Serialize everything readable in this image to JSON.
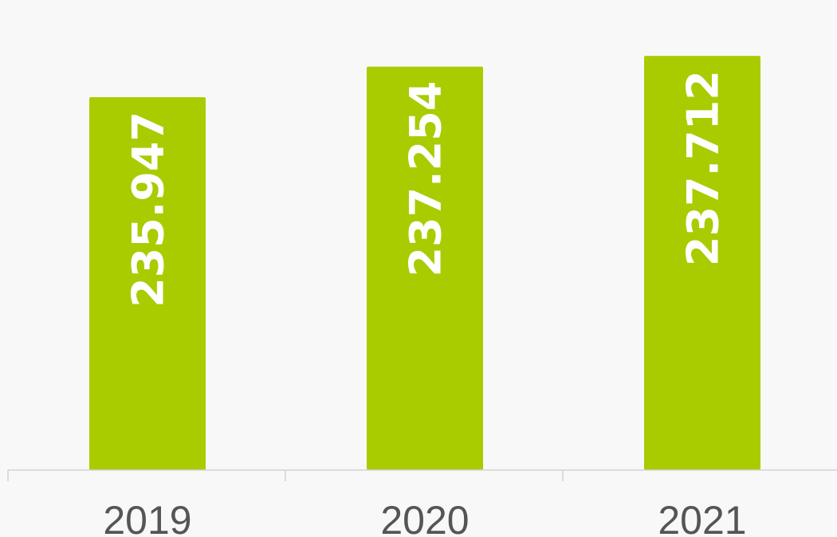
{
  "chart_data": {
    "type": "bar",
    "categories": [
      "2019",
      "2020",
      "2021"
    ],
    "values": [
      235947,
      237254,
      237712
    ],
    "value_labels": [
      "235.947",
      "237.254",
      "237.712"
    ],
    "title": "",
    "xlabel": "",
    "ylabel": "",
    "ylim": [
      220000,
      240000
    ],
    "grid": false,
    "legend": "none",
    "colors": {
      "bar": "#a8cc00",
      "label": "#ffffff",
      "axis": "#d3d3d3",
      "tick_text": "#555555",
      "background": "#f8f8f8"
    }
  }
}
